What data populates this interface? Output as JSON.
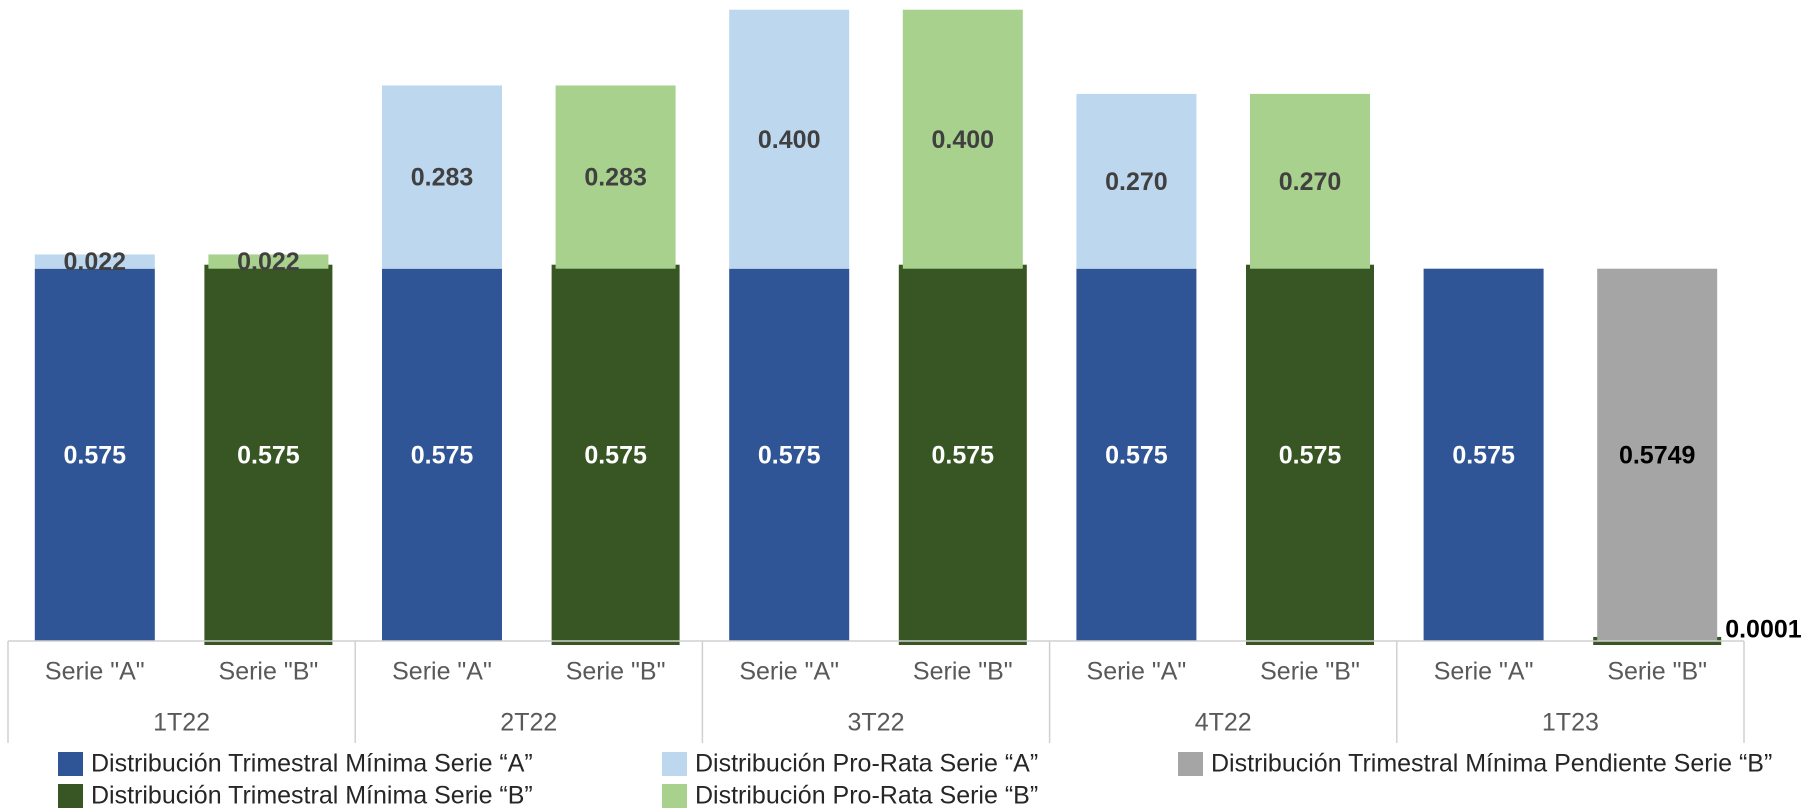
{
  "chart_data": {
    "type": "stacked-bar",
    "categories": [
      "Serie \"A\"",
      "Serie \"B\"",
      "Serie \"A\"",
      "Serie \"B\"",
      "Serie \"A\"",
      "Serie \"B\"",
      "Serie \"A\"",
      "Serie \"B\"",
      "Serie \"A\"",
      "Serie \"B\""
    ],
    "groups": [
      "1T22",
      "2T22",
      "3T22",
      "4T22",
      "1T23"
    ],
    "ylim": [
      0,
      0.99
    ],
    "grid": false,
    "series": [
      {
        "name": "Distribución Trimestral Mínima Serie “A”",
        "color": "#2f5597",
        "label_color": "#ffffff",
        "values": [
          0.575,
          null,
          0.575,
          null,
          0.575,
          null,
          0.575,
          null,
          0.575,
          null
        ],
        "value_labels": [
          "0.575",
          null,
          "0.575",
          null,
          "0.575",
          null,
          "0.575",
          null,
          "0.575",
          null
        ]
      },
      {
        "name": "Distribución Trimestral Mínima Serie “B”",
        "color": "#375623",
        "label_color": "#ffffff",
        "values": [
          null,
          0.575,
          null,
          0.575,
          null,
          0.575,
          null,
          0.575,
          null,
          0.0001
        ],
        "value_labels": [
          null,
          "0.575",
          null,
          "0.575",
          null,
          "0.575",
          null,
          "0.575",
          null,
          "0.0001"
        ]
      },
      {
        "name": "Distribución Pro-Rata Serie “A”",
        "color": "#bdd7ee",
        "label_color": "#404040",
        "values": [
          0.022,
          null,
          0.283,
          null,
          0.4,
          null,
          0.27,
          null,
          null,
          null
        ],
        "value_labels": [
          "0.022",
          null,
          "0.283",
          null,
          "0.400",
          null,
          "0.270",
          null,
          null,
          null
        ]
      },
      {
        "name": "Distribución Pro-Rata Serie “B”",
        "color": "#a9d18e",
        "label_color": "#404040",
        "values": [
          null,
          0.022,
          null,
          0.283,
          null,
          0.4,
          null,
          0.27,
          null,
          null
        ],
        "value_labels": [
          null,
          "0.022",
          null,
          "0.283",
          null,
          "0.400",
          null,
          "0.270",
          null,
          null
        ]
      },
      {
        "name": "Distribución Trimestral Mínima Pendiente Serie “B”",
        "color": "#a5a5a5",
        "label_color": "#000000",
        "values": [
          null,
          null,
          null,
          null,
          null,
          null,
          null,
          null,
          null,
          0.5749
        ],
        "value_labels": [
          null,
          null,
          null,
          null,
          null,
          null,
          null,
          null,
          null,
          "0.5749"
        ]
      }
    ]
  }
}
